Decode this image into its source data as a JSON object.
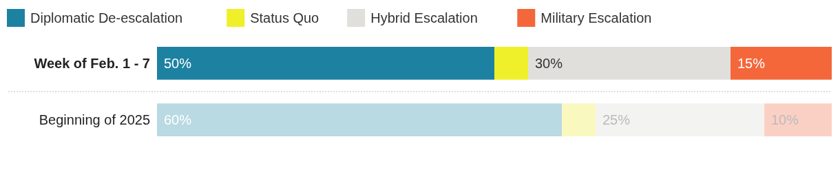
{
  "chart_data": {
    "type": "bar",
    "orientation": "horizontal",
    "stacked": true,
    "categories": [
      "Week of Feb. 1 - 7",
      "Beginning of 2025"
    ],
    "xlim": [
      0,
      100
    ],
    "tick_labels": "y",
    "legend": "top left",
    "series": [
      {
        "name": "Diplomatic De-escalation",
        "color": "#1d81a2",
        "colors": [
          "#1d81a2",
          "#b9d9e3"
        ],
        "values": [
          50,
          60
        ],
        "value_labels": [
          "50%",
          "60%"
        ]
      },
      {
        "name": "Status Quo",
        "color": "#eff02a",
        "colors": [
          "#eff02a",
          "#f9f8bf"
        ],
        "values": [
          5,
          5
        ],
        "value_labels": [
          null,
          null
        ]
      },
      {
        "name": "Hybrid Escalation",
        "color": "#e0dfdc",
        "colors": [
          "#e0dfdc",
          "#f3f3f1"
        ],
        "values": [
          30,
          25
        ],
        "value_labels": [
          "30%",
          "25%"
        ]
      },
      {
        "name": "Military Escalation",
        "color": "#f4673b",
        "colors": [
          "#f4673b",
          "#fbd0c4"
        ],
        "values": [
          15,
          10
        ],
        "value_labels": [
          "15%",
          "10%"
        ]
      }
    ]
  }
}
